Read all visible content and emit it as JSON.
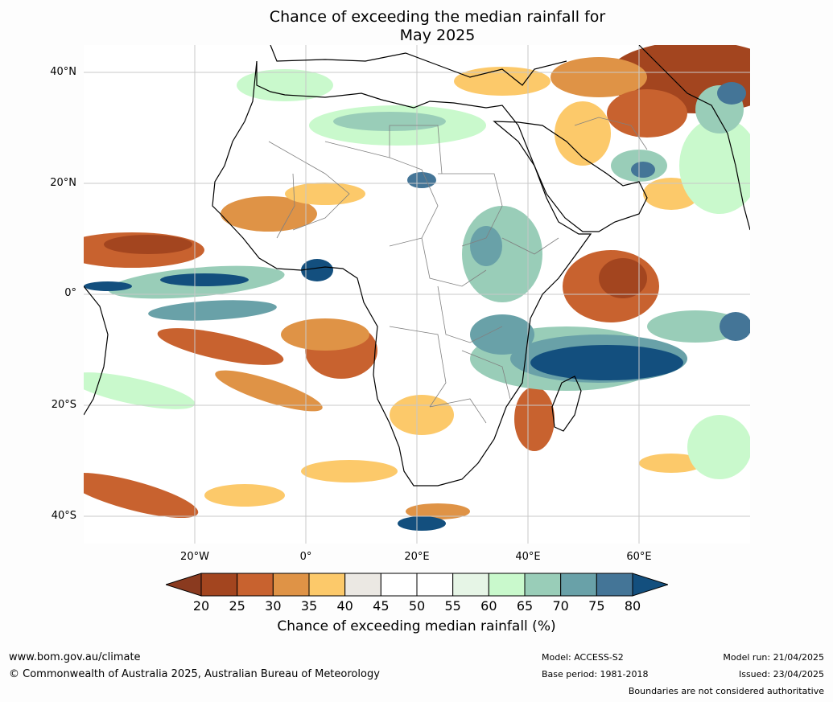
{
  "title": {
    "line1": "Chance of exceeding the median rainfall for",
    "line2": "May 2025"
  },
  "map": {
    "lat_labels": [
      "40°N",
      "20°N",
      "0°",
      "20°S",
      "40°S"
    ],
    "lon_labels": [
      "20°W",
      "0°",
      "20°E",
      "40°E",
      "60°E"
    ]
  },
  "colorbar": {
    "ticks": [
      "20",
      "25",
      "30",
      "35",
      "40",
      "45",
      "50",
      "55",
      "60",
      "65",
      "70",
      "75",
      "80"
    ],
    "colors": [
      "#a3451f",
      "#c8622f",
      "#df9346",
      "#fcc96a",
      "#ebe8e3",
      "#ffffff",
      "#ffffff",
      "#e6f5e6",
      "#c9f9cc",
      "#99cdb8",
      "#69a1a8",
      "#447597"
    ],
    "under_color": "#8a3a1f",
    "over_color": "#134f7e",
    "label": "Chance of exceeding median rainfall (%)"
  },
  "footer": {
    "url": "www.bom.gov.au/climate",
    "copyright": "© Commonwealth of Australia 2025, Australian Bureau of Meteorology",
    "model": "Model: ACCESS-S2",
    "base_period": "Base period: 1981-2018",
    "model_run": "Model run: 21/04/2025",
    "issued": "Issued: 23/04/2025",
    "disclaimer": "Boundaries are not considered authoritative"
  }
}
